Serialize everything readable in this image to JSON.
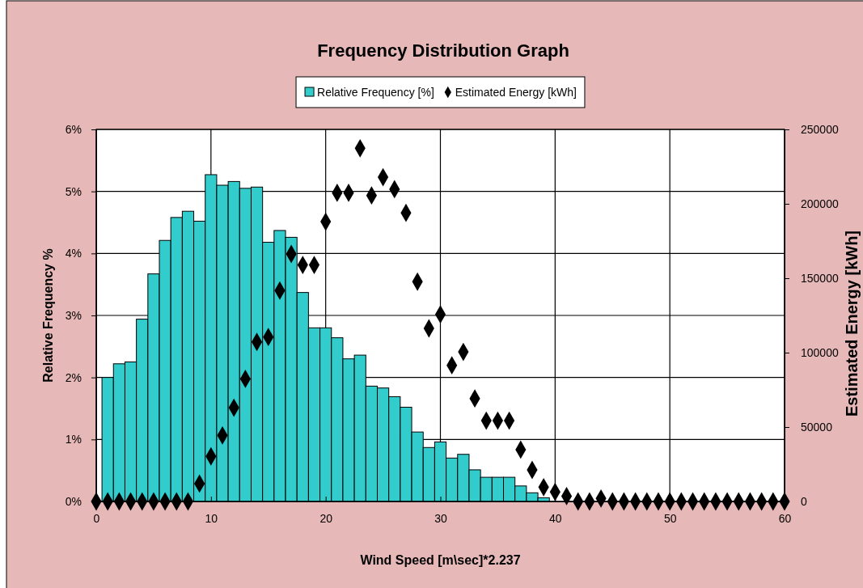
{
  "chart_data": {
    "type": "histogram",
    "title": "Frequency Distribution Graph",
    "xlabel": "Wind Speed [m\\sec]*2.237",
    "ylabel": "Relative Frequency %",
    "y2label": "Estimated Energy  [kWh]",
    "bins": [
      0.5,
      1.5,
      2.5,
      3.5,
      4.5,
      5.5,
      6.5,
      7.5,
      8.5,
      9.5,
      10.5,
      11.5,
      12.5,
      13.5,
      14.5,
      15.5,
      16.5,
      17.5,
      18.5,
      19.5,
      20.5,
      21.5,
      22.5,
      23.5,
      24.5,
      25.5,
      26.5,
      27.5,
      28.5,
      29.5,
      30.5,
      31.5,
      32.5,
      33.5,
      34.5,
      35.5,
      36.5,
      37.5,
      38.5,
      39.5
    ],
    "series": [
      {
        "name": "Relative Frequency [%]",
        "color": "#33cccc",
        "values": [
          2.0,
          2.22,
          2.25,
          2.94,
          3.67,
          4.21,
          4.58,
          4.68,
          4.52,
          5.27,
          5.1,
          5.16,
          5.05,
          5.07,
          4.18,
          4.37,
          4.26,
          3.37,
          2.8,
          2.8,
          2.64,
          2.3,
          2.36,
          1.86,
          1.83,
          1.69,
          1.52,
          1.12,
          0.87,
          0.96,
          0.7,
          0.76,
          0.51,
          0.39,
          0.39,
          0.39,
          0.25,
          0.14,
          0.06
        ]
      },
      {
        "name": "Estimated Energy [kWh]",
        "type": "scatter",
        "axis": "y2",
        "color": "#000000",
        "x": [
          0,
          1,
          2,
          3,
          4,
          5,
          6,
          7,
          8,
          9,
          10,
          11,
          12,
          13,
          14,
          15,
          16,
          17,
          18,
          19,
          20,
          21,
          22,
          23,
          24,
          25,
          26,
          27,
          28,
          29,
          30,
          31,
          32,
          33,
          34,
          35,
          36,
          37,
          38,
          39,
          40,
          41,
          42,
          43,
          44,
          45,
          46,
          47,
          48,
          49,
          50,
          51,
          52,
          53,
          54,
          55,
          56,
          57,
          58,
          59,
          60
        ],
        "values": [
          0,
          0,
          0,
          0,
          0,
          0,
          0,
          0,
          0,
          12000,
          30300,
          44400,
          63000,
          82400,
          107200,
          110500,
          141700,
          166300,
          158900,
          158900,
          188000,
          207400,
          207400,
          237300,
          205600,
          217900,
          209800,
          193900,
          147700,
          116300,
          125700,
          91500,
          100500,
          69200,
          54300,
          54300,
          54300,
          34800,
          21200,
          9600,
          6400,
          3600,
          0,
          0,
          2000,
          0,
          0,
          0,
          0,
          0,
          0,
          0,
          0,
          0,
          0,
          0,
          0,
          0,
          0,
          0,
          0
        ]
      }
    ],
    "xlim": [
      0,
      60
    ],
    "xticks": [
      0,
      10,
      20,
      30,
      40,
      50,
      60
    ],
    "ylim": [
      0,
      6
    ],
    "yticks": [
      {
        "value": 0,
        "label": "0%"
      },
      {
        "value": 1,
        "label": "1%"
      },
      {
        "value": 2,
        "label": "2%"
      },
      {
        "value": 3,
        "label": "3%"
      },
      {
        "value": 4,
        "label": "4%"
      },
      {
        "value": 5,
        "label": "5%"
      },
      {
        "value": 6,
        "label": "6%"
      }
    ],
    "y2lim": [
      0,
      250000
    ],
    "y2ticks": [
      0,
      50000,
      100000,
      150000,
      200000,
      250000
    ],
    "grid": true,
    "legend": "top",
    "marker": "diamond"
  }
}
